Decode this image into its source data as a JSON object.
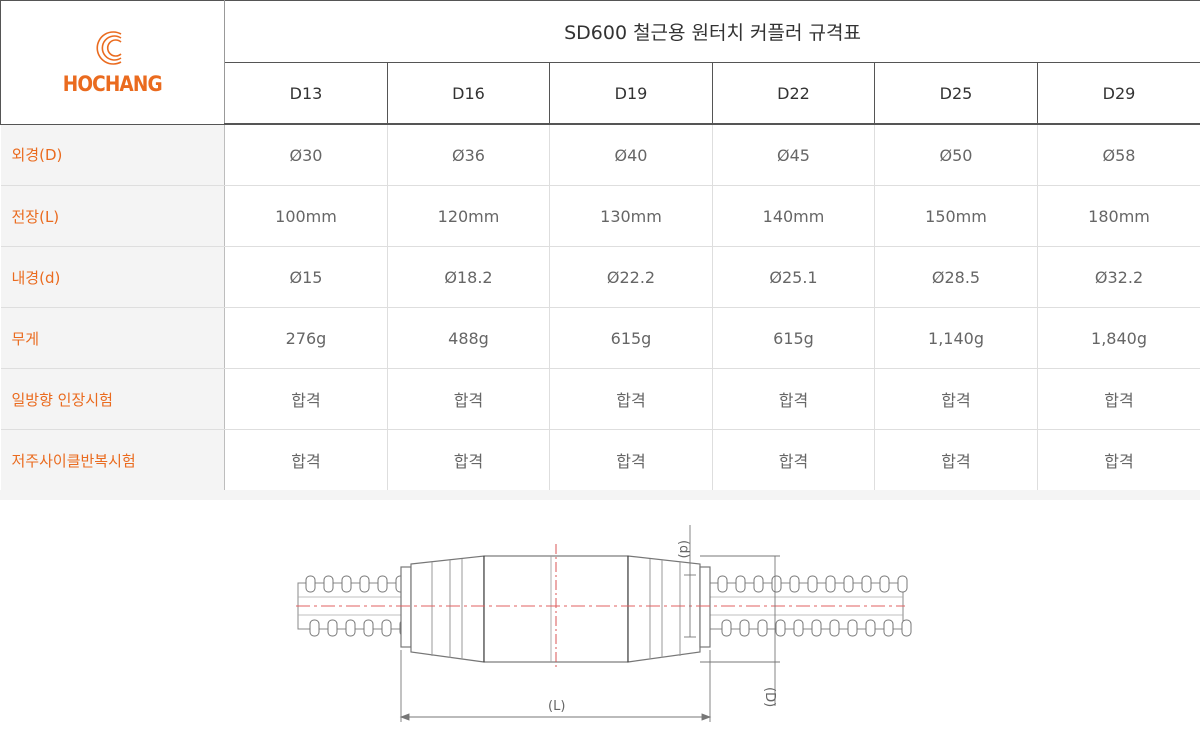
{
  "logo": {
    "text": "HOCHANG",
    "color": "#ea6b1f"
  },
  "table": {
    "title": "SD600 철근용 원터치 커플러 규격표",
    "sizes": [
      "D13",
      "D16",
      "D19",
      "D22",
      "D25",
      "D29"
    ],
    "rows": [
      {
        "label": "외경(D)",
        "values": [
          "Ø30",
          "Ø36",
          "Ø40",
          "Ø45",
          "Ø50",
          "Ø58"
        ]
      },
      {
        "label": "전장(L)",
        "values": [
          "100mm",
          "120mm",
          "130mm",
          "140mm",
          "150mm",
          "180mm"
        ]
      },
      {
        "label": "내경(d)",
        "values": [
          "Ø15",
          "Ø18.2",
          "Ø22.2",
          "Ø25.1",
          "Ø28.5",
          "Ø32.2"
        ]
      },
      {
        "label": "무게",
        "values": [
          "276g",
          "488g",
          "615g",
          "615g",
          "1,140g",
          "1,840g"
        ]
      },
      {
        "label": "일방향 인장시험",
        "values": [
          "합격",
          "합격",
          "합격",
          "합격",
          "합격",
          "합격"
        ]
      },
      {
        "label": "저주사이클반복시험",
        "values": [
          "합격",
          "합격",
          "합격",
          "합격",
          "합격",
          "합격"
        ]
      }
    ]
  },
  "diagram": {
    "label_d": "(d)",
    "label_D": "(D)",
    "label_L": "(L)"
  },
  "colors": {
    "accent": "#ea6b1f",
    "centerline": "#e06060"
  }
}
